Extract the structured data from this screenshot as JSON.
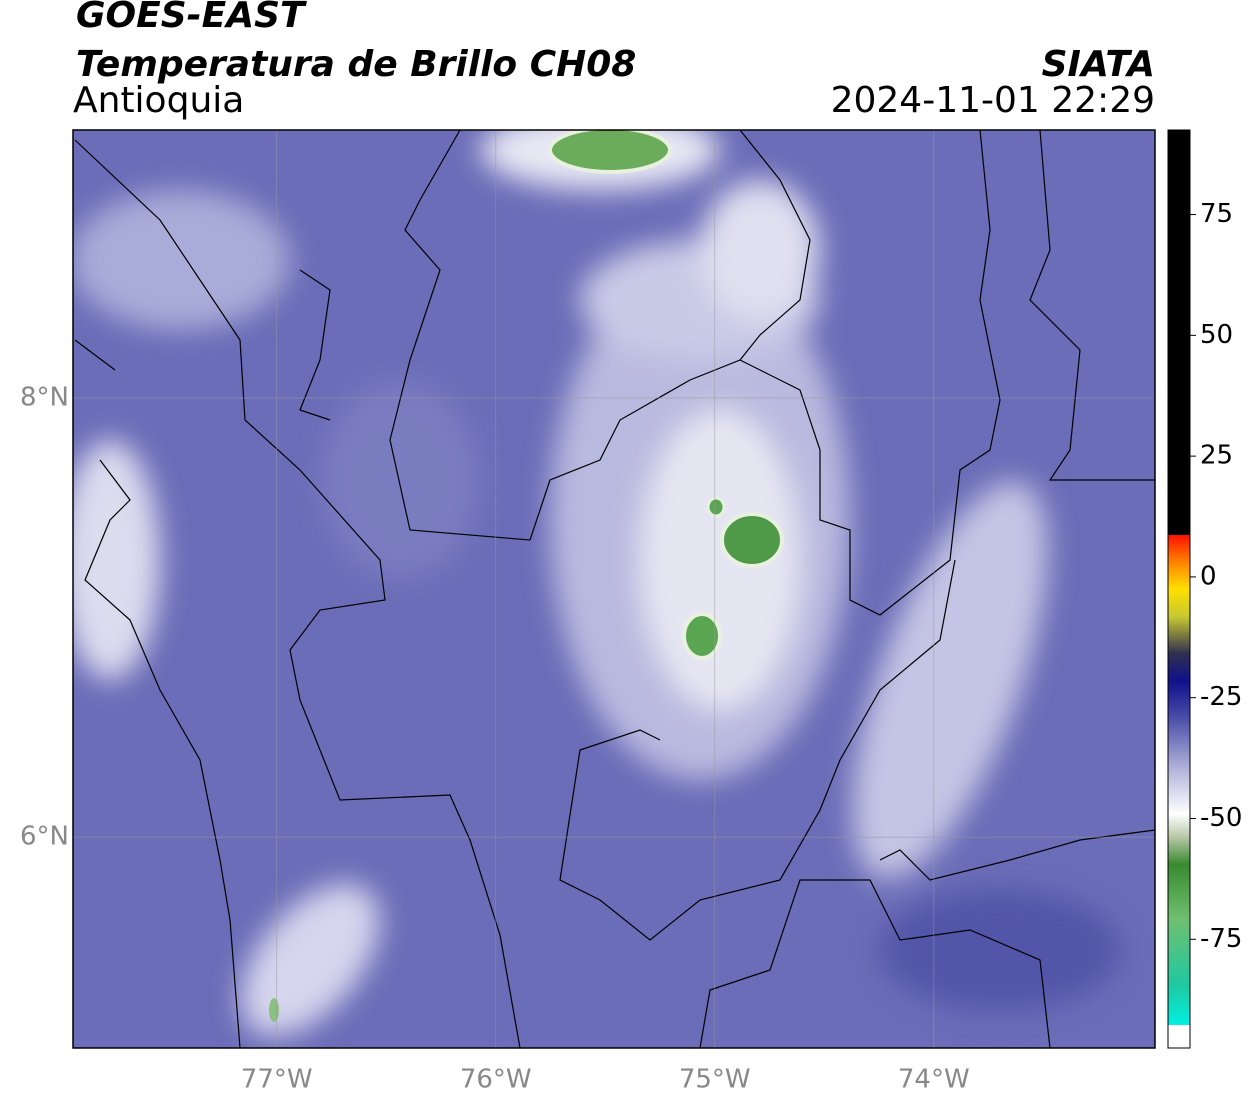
{
  "chart_data": {
    "type": "map",
    "title": "GOES-EAST",
    "subtitle": "Temperatura de Brillo CH08",
    "region": "Antioquia",
    "source": "SIATA",
    "datetime": "2024-11-01 22:29",
    "xlim": [
      -77.93,
      -72.99
    ],
    "ylim": [
      5.04,
      9.22
    ],
    "xticks": [
      {
        "value": -77,
        "label": "77°W"
      },
      {
        "value": -76,
        "label": "76°W"
      },
      {
        "value": -75,
        "label": "75°W"
      },
      {
        "value": -74,
        "label": "74°W"
      }
    ],
    "yticks": [
      {
        "value": 6,
        "label": "6°N"
      },
      {
        "value": 8,
        "label": "8°N"
      }
    ],
    "grid": true,
    "colorbar": {
      "clim": [
        -97.5,
        92.5
      ],
      "ticks": [
        -75,
        -50,
        -25,
        0,
        25,
        50,
        75
      ]
    }
  }
}
